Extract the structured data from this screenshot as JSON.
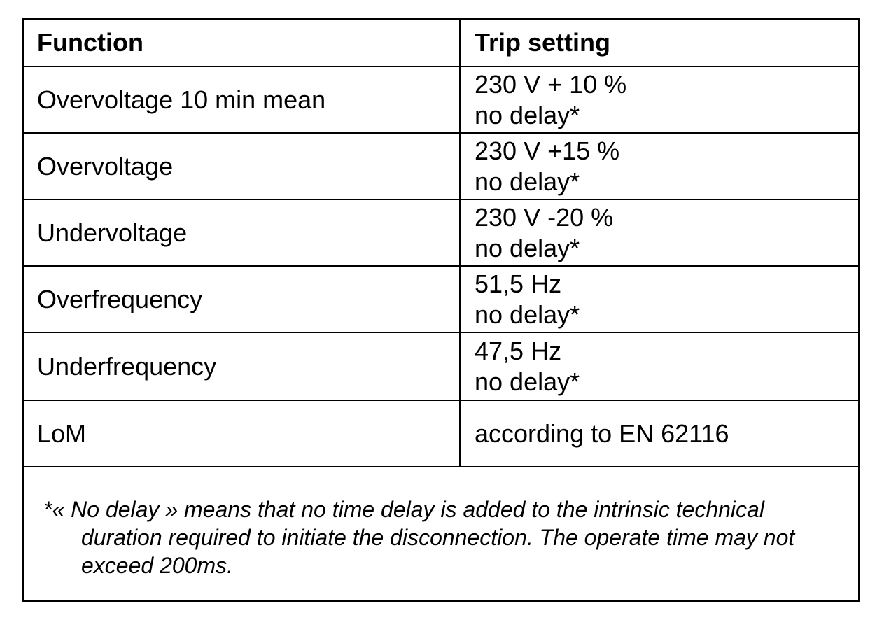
{
  "table": {
    "headers": {
      "function": "Function",
      "trip_setting": "Trip setting"
    },
    "rows": [
      {
        "function": "Overvoltage 10 min mean",
        "setting_line1": "230 V + 10 %",
        "setting_line2": "no delay*"
      },
      {
        "function": "Overvoltage",
        "setting_line1": "230 V +15 %",
        "setting_line2": "no delay*"
      },
      {
        "function": "Undervoltage",
        "setting_line1": "230 V -20 %",
        "setting_line2": "no delay*"
      },
      {
        "function": "Overfrequency",
        "setting_line1": "51,5 Hz",
        "setting_line2": "no delay*"
      },
      {
        "function": "Underfrequency",
        "setting_line1": "47,5 Hz",
        "setting_line2": "no delay*"
      },
      {
        "function": "LoM",
        "setting_line1": "according to EN 62116"
      }
    ],
    "footnote": "*« No delay » means that no time delay is added to the intrinsic technical duration required to initiate the disconnection. The operate time may not exceed 200ms."
  }
}
